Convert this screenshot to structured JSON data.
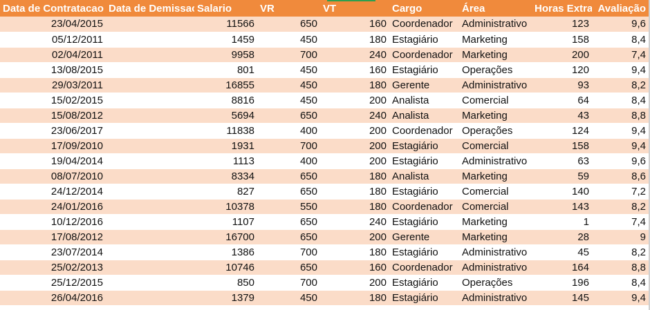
{
  "headers": [
    "Data de Contratacao",
    "Data de Demissao",
    "Salario",
    "VR",
    "VT",
    "Cargo",
    "Área",
    "Horas Extras",
    "Avaliação"
  ],
  "rows": [
    [
      "23/04/2015",
      "",
      "11566",
      "650",
      "160",
      "Coordenador",
      "Administrativo",
      "123",
      "9,6"
    ],
    [
      "05/12/2011",
      "",
      "1459",
      "450",
      "180",
      "Estagiário",
      "Marketing",
      "158",
      "8,4"
    ],
    [
      "02/04/2011",
      "",
      "9958",
      "700",
      "240",
      "Coordenador",
      "Marketing",
      "200",
      "7,4"
    ],
    [
      "13/08/2015",
      "",
      "801",
      "450",
      "160",
      "Estagiário",
      "Operações",
      "120",
      "9,4"
    ],
    [
      "29/03/2011",
      "",
      "16855",
      "450",
      "180",
      "Gerente",
      "Administrativo",
      "93",
      "8,2"
    ],
    [
      "15/02/2015",
      "",
      "8816",
      "450",
      "200",
      "Analista",
      "Comercial",
      "64",
      "8,4"
    ],
    [
      "15/08/2012",
      "",
      "5694",
      "650",
      "240",
      "Analista",
      "Marketing",
      "43",
      "8,8"
    ],
    [
      "23/06/2017",
      "",
      "11838",
      "400",
      "200",
      "Coordenador",
      "Operações",
      "124",
      "9,4"
    ],
    [
      "17/09/2010",
      "",
      "1931",
      "700",
      "200",
      "Estagiário",
      "Comercial",
      "158",
      "9,4"
    ],
    [
      "19/04/2014",
      "",
      "1113",
      "400",
      "200",
      "Estagiário",
      "Administrativo",
      "63",
      "9,6"
    ],
    [
      "08/07/2010",
      "",
      "8334",
      "650",
      "180",
      "Analista",
      "Marketing",
      "59",
      "8,6"
    ],
    [
      "24/12/2014",
      "",
      "827",
      "650",
      "180",
      "Estagiário",
      "Comercial",
      "140",
      "7,2"
    ],
    [
      "24/01/2016",
      "",
      "10378",
      "550",
      "180",
      "Coordenador",
      "Comercial",
      "143",
      "8,2"
    ],
    [
      "10/12/2016",
      "",
      "1107",
      "650",
      "240",
      "Estagiário",
      "Marketing",
      "1",
      "7,4"
    ],
    [
      "17/08/2012",
      "",
      "16700",
      "650",
      "200",
      "Gerente",
      "Marketing",
      "28",
      "9"
    ],
    [
      "23/07/2014",
      "",
      "1386",
      "700",
      "180",
      "Estagiário",
      "Administrativo",
      "45",
      "8,2"
    ],
    [
      "25/02/2013",
      "",
      "10746",
      "650",
      "160",
      "Coordenador",
      "Administrativo",
      "164",
      "8,8"
    ],
    [
      "25/12/2015",
      "",
      "850",
      "700",
      "200",
      "Estagiário",
      "Operações",
      "196",
      "8,4"
    ],
    [
      "26/04/2016",
      "",
      "1379",
      "450",
      "180",
      "Estagiário",
      "Administrativo",
      "145",
      "9,4"
    ]
  ],
  "colors": {
    "header_bg": "#f08a3c",
    "band_bg": "#fbdcc8"
  }
}
